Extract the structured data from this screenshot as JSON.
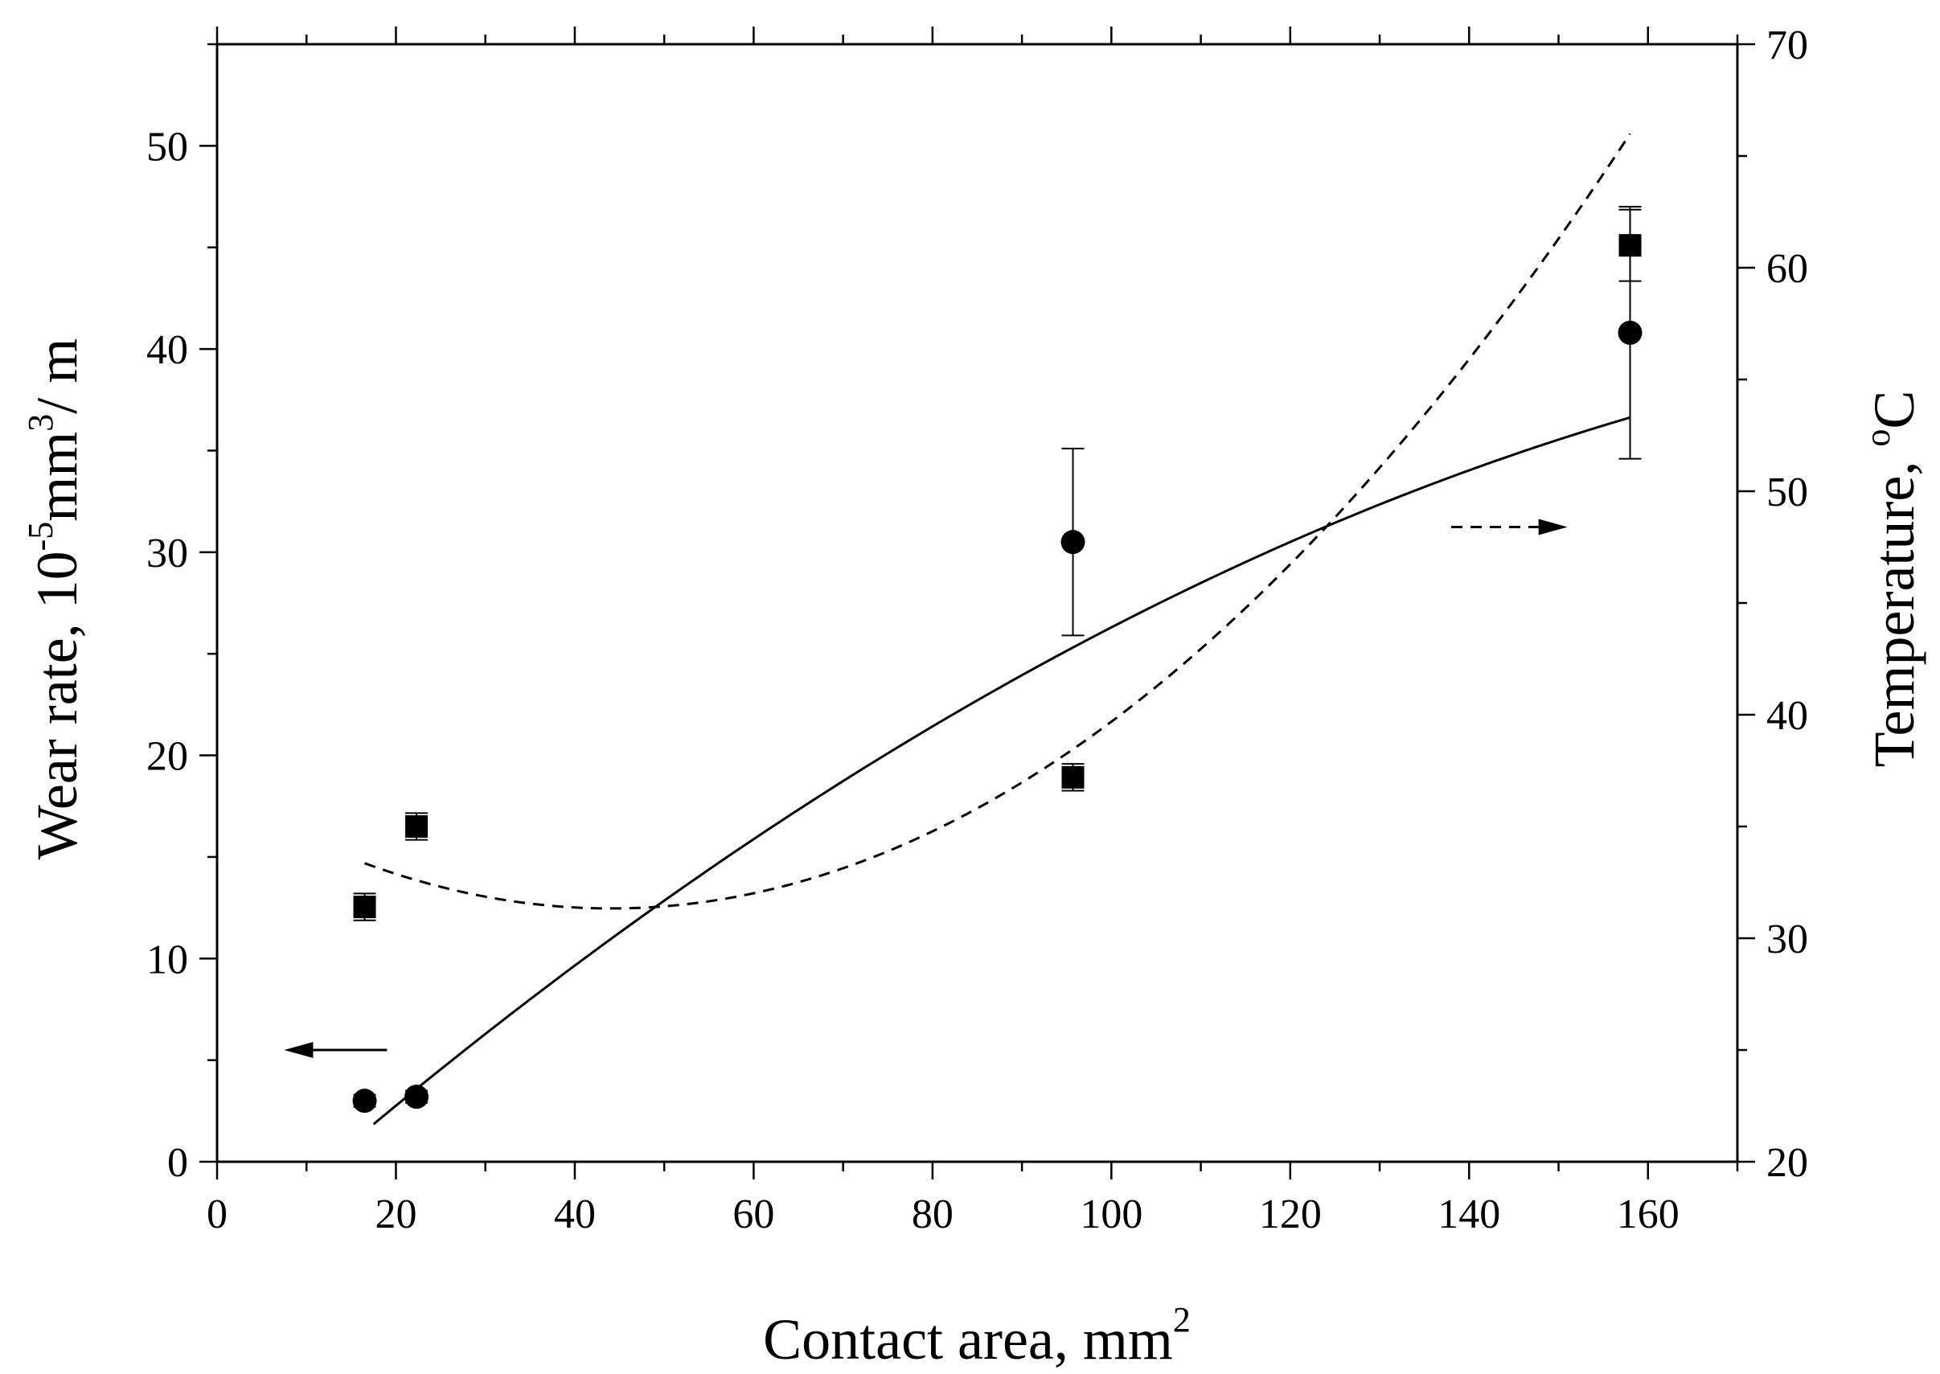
{
  "chart_data": {
    "type": "scatter",
    "title": "",
    "xlabel": "Contact area, mm",
    "xlabel_sup": "2",
    "ylabel_parts": [
      "Wear rate, 10",
      "-5",
      "mm",
      "3",
      "/ m"
    ],
    "y2label_parts": [
      "Temperature, ",
      "o",
      "C"
    ],
    "xlim": [
      0,
      170
    ],
    "ylim": [
      0,
      55
    ],
    "y2lim": [
      20,
      70
    ],
    "xticks": [
      "0",
      "20",
      "40",
      "60",
      "80",
      "100",
      "120",
      "140",
      "160"
    ],
    "yticks": [
      "0",
      "10",
      "20",
      "30",
      "40",
      "50"
    ],
    "y2ticks": [
      "20",
      "30",
      "40",
      "50",
      "60",
      "70"
    ],
    "series": [
      {
        "name": "Wear rate",
        "axis": "left",
        "marker": "circle",
        "x": [
          16.5,
          22.3,
          95.7,
          158.0
        ],
        "y": [
          3.0,
          3.2,
          30.5,
          40.8
        ],
        "err": [
          0.3,
          0.3,
          4.6,
          6.2
        ],
        "fit": "solid",
        "fit_x": [
          17.5,
          158
        ],
        "fit_coeffs": [
          -4.81,
          0.3953,
          -0.000842
        ]
      },
      {
        "name": "Temperature",
        "axis": "right",
        "marker": "square",
        "x": [
          16.5,
          22.3,
          95.7,
          158.0
        ],
        "y": [
          31.4,
          35.0,
          37.2,
          61.0
        ],
        "err": [
          0.6,
          0.6,
          0.6,
          1.6
        ],
        "fit": "dashed",
        "fit_x": [
          16.5,
          158
        ],
        "fit_coeffs": [
          36.51,
          -0.2351,
          0.002669
        ]
      }
    ],
    "annotations": [
      {
        "name": "left-axis-arrow",
        "direction": "left",
        "style": "solid",
        "x": [
          19.0,
          7.5
        ],
        "y_left": 5.5
      },
      {
        "name": "right-axis-arrow",
        "direction": "right",
        "style": "dashed",
        "x": [
          138.0,
          151.0
        ],
        "y_right": 48.4
      }
    ]
  }
}
